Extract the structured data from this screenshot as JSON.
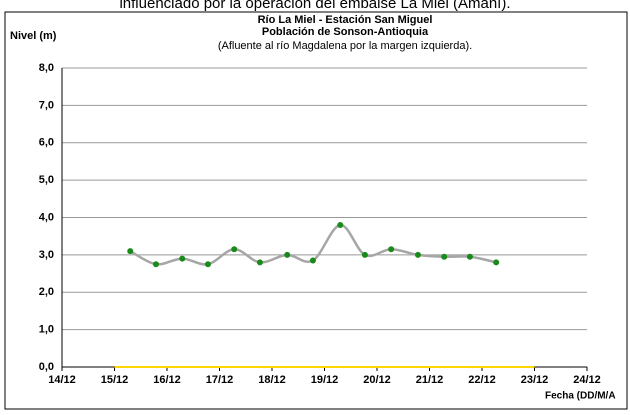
{
  "caption": "influenciado por la operación del embalse La Miel (Amaní).",
  "chart_data": {
    "type": "line",
    "title": "Río La Miel  - Estación San Miguel",
    "subtitle": "Población de Sonson-Antioquia",
    "note": "(Afluente al río Magdalena por la margen izquierda).",
    "y_label": "Nivel (m)",
    "x_label": "Fecha (DD/M/A",
    "xlim": [
      14,
      24
    ],
    "xticks": [
      {
        "value": 14,
        "label": "14/12"
      },
      {
        "value": 15,
        "label": "15/12"
      },
      {
        "value": 16,
        "label": "16/12"
      },
      {
        "value": 17,
        "label": "17/12"
      },
      {
        "value": 18,
        "label": "18/12"
      },
      {
        "value": 19,
        "label": "19/12"
      },
      {
        "value": 20,
        "label": "20/12"
      },
      {
        "value": 21,
        "label": "21/12"
      },
      {
        "value": 22,
        "label": "22/12"
      },
      {
        "value": 23,
        "label": "23/12"
      },
      {
        "value": 24,
        "label": "24/12"
      }
    ],
    "ylim": [
      0,
      8
    ],
    "yticks": [
      {
        "value": 0,
        "label": "0,0"
      },
      {
        "value": 1,
        "label": "1,0"
      },
      {
        "value": 2,
        "label": "2,0"
      },
      {
        "value": 3,
        "label": "3,0"
      },
      {
        "value": 4,
        "label": "4,0"
      },
      {
        "value": 5,
        "label": "5,0"
      },
      {
        "value": 6,
        "label": "6,0"
      },
      {
        "value": 7,
        "label": "7,0"
      },
      {
        "value": 8,
        "label": "8,0"
      }
    ],
    "grid": true,
    "series": [
      {
        "color": "#a6a6a6",
        "marker_color": "#1a8a1a",
        "smooth": true,
        "x": [
          15.3,
          15.79,
          16.29,
          16.78,
          17.28,
          17.77,
          18.29,
          18.78,
          19.3,
          19.77,
          20.27,
          20.78,
          21.28,
          21.77,
          22.27
        ],
        "values": [
          3.1,
          2.75,
          2.9,
          2.75,
          3.15,
          2.8,
          3.0,
          2.85,
          3.8,
          3.0,
          3.15,
          3.0,
          2.95,
          2.95,
          2.8
        ]
      },
      {
        "color": "#ffd700",
        "x": [
          15,
          23
        ],
        "values": [
          0,
          0
        ]
      }
    ]
  }
}
